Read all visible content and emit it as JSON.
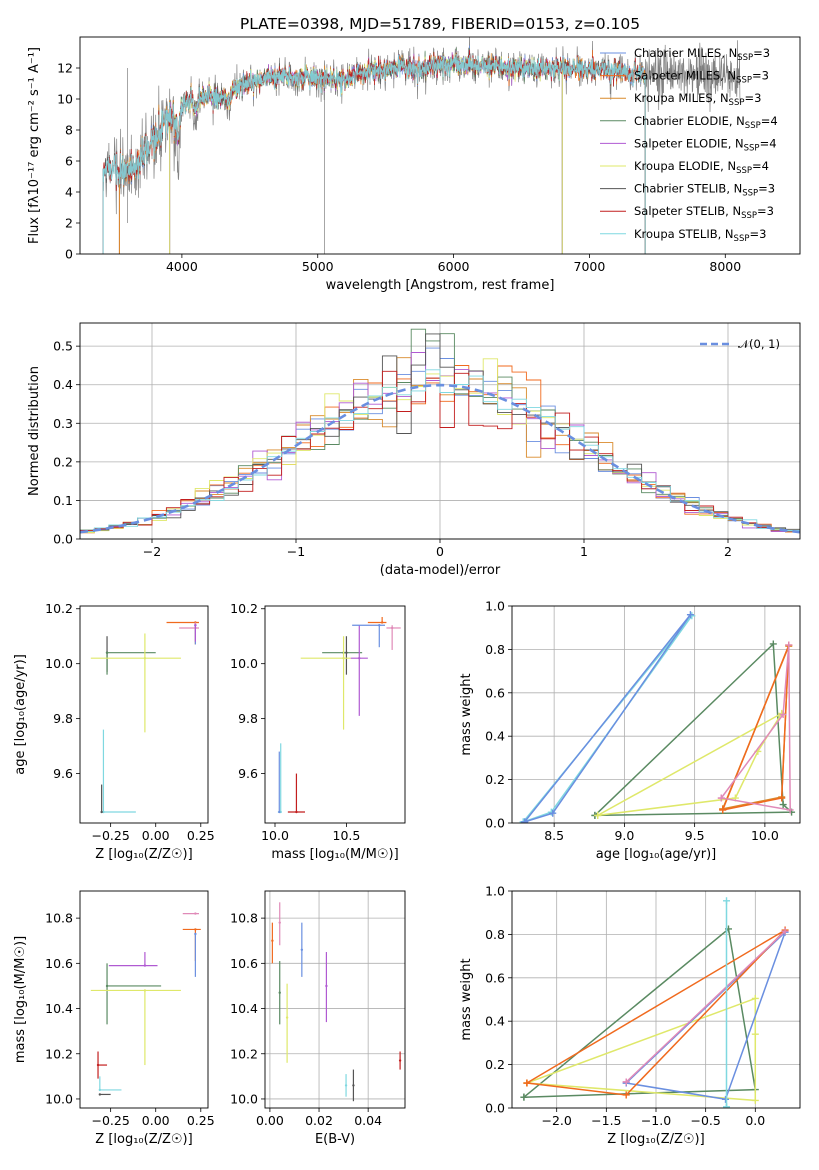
{
  "title": "PLATE=0398, MJD=51789, FIBERID=0153, z=0.105",
  "colors": {
    "chabrier_miles": "#6a8fe0",
    "salpeter_miles": "#f06a1e",
    "kroupa_miles": "#d98a2b",
    "chabrier_elodie": "#5a8a62",
    "salpeter_elodie": "#b05ad2",
    "kroupa_elodie": "#dfe86a",
    "chabrier_stelib": "#555555",
    "salpeter_stelib": "#c21e1e",
    "kroupa_stelib": "#7fd8e0",
    "pink": "#e08ab8",
    "data": "#808080",
    "normal": "#6a8fe0"
  },
  "chart_data": [
    {
      "id": "spectrum",
      "type": "line",
      "xlabel": "wavelength [Angstrom, rest frame]",
      "ylabel": "Flux [fλ10⁻¹⁷ erg cm⁻² s⁻¹ A⁻¹]",
      "xlim": [
        3250,
        8550
      ],
      "ylim": [
        0,
        14
      ],
      "xticks": [
        4000,
        5000,
        6000,
        7000,
        8000
      ],
      "yticks": [
        0,
        2,
        4,
        6,
        8,
        10,
        12
      ],
      "legend_position": "top-right",
      "legend": [
        {
          "label": "Chabrier MILES, N",
          "sub": "SSP",
          "suffix": "=3",
          "color": "#6a8fe0"
        },
        {
          "label": "Salpeter MILES, N",
          "sub": "SSP",
          "suffix": "=3",
          "color": "#f06a1e"
        },
        {
          "label": "Kroupa MILES, N",
          "sub": "SSP",
          "suffix": "=3",
          "color": "#d98a2b"
        },
        {
          "label": "Chabrier ELODIE, N",
          "sub": "SSP",
          "suffix": "=4",
          "color": "#5a8a62"
        },
        {
          "label": "Salpeter ELODIE, N",
          "sub": "SSP",
          "suffix": "=4",
          "color": "#b05ad2"
        },
        {
          "label": "Kroupa ELODIE, N",
          "sub": "SSP",
          "suffix": "=4",
          "color": "#dfe86a"
        },
        {
          "label": "Chabrier STELIB, N",
          "sub": "SSP",
          "suffix": "=3",
          "color": "#555555"
        },
        {
          "label": "Salpeter STELIB, N",
          "sub": "SSP",
          "suffix": "=3",
          "color": "#c21e1e"
        },
        {
          "label": "Kroupa STELIB, N",
          "sub": "SSP",
          "suffix": "=3",
          "color": "#7fd8e0"
        }
      ],
      "data_range": [
        3420,
        8110
      ],
      "model_ranges": {
        "miles": [
          3540,
          7410
        ],
        "elodie": [
          3910,
          6800
        ],
        "stelib": [
          3420,
          7410
        ]
      },
      "envelope": [
        [
          3420,
          5.5
        ],
        [
          3600,
          5.3
        ],
        [
          3700,
          6.2
        ],
        [
          3800,
          7.5
        ],
        [
          3900,
          8.8
        ],
        [
          4000,
          9.6
        ],
        [
          4100,
          10.2
        ],
        [
          4200,
          10.2
        ],
        [
          4300,
          10.1
        ],
        [
          4400,
          10.6
        ],
        [
          4500,
          11.0
        ],
        [
          4600,
          11.3
        ],
        [
          4700,
          11.4
        ],
        [
          4800,
          11.5
        ],
        [
          4900,
          11.5
        ],
        [
          5000,
          11.4
        ],
        [
          5100,
          11.3
        ],
        [
          5200,
          11.2
        ],
        [
          5300,
          11.6
        ],
        [
          5400,
          11.8
        ],
        [
          5500,
          11.9
        ],
        [
          5600,
          12.0
        ],
        [
          5700,
          12.0
        ],
        [
          5800,
          12.1
        ],
        [
          5900,
          12.2
        ],
        [
          6000,
          12.2
        ],
        [
          6100,
          12.2
        ],
        [
          6200,
          12.1
        ],
        [
          6300,
          12.1
        ],
        [
          6400,
          12.0
        ],
        [
          6500,
          12.0
        ],
        [
          6600,
          12.0
        ],
        [
          6700,
          12.0
        ],
        [
          6800,
          12.0
        ],
        [
          6900,
          12.0
        ],
        [
          7000,
          11.9
        ],
        [
          7100,
          11.9
        ],
        [
          7200,
          11.8
        ],
        [
          7300,
          11.7
        ],
        [
          7410,
          11.6
        ],
        [
          7600,
          11.6
        ],
        [
          7800,
          11.5
        ],
        [
          8000,
          11.5
        ],
        [
          8110,
          11.4
        ]
      ]
    },
    {
      "id": "residuals",
      "type": "step",
      "xlabel": "(data-model)/error",
      "ylabel": "Normed distribution",
      "xlim": [
        -2.5,
        2.5
      ],
      "ylim": [
        0,
        0.56
      ],
      "xticks": [
        -2,
        -1,
        0,
        1,
        2
      ],
      "yticks": [
        0.0,
        0.1,
        0.2,
        0.3,
        0.4,
        0.5
      ],
      "grid": true,
      "legend_position": "top-right",
      "legend": [
        {
          "label": "𝒩(0, 1)",
          "color": "#6a8fe0",
          "style": "dashed"
        }
      ],
      "bin_width": 0.1
    },
    {
      "id": "age_vs_Z",
      "type": "errorbar",
      "xlabel": "Z [log₁₀(Z/Z☉)]",
      "ylabel": "age  [log₁₀(age/yr)]",
      "xlim": [
        -0.42,
        0.29
      ],
      "ylim": [
        9.42,
        10.21
      ],
      "xticks": [
        -0.25,
        0.0,
        0.25
      ],
      "yticks": [
        9.6,
        9.8,
        10.0,
        10.2
      ],
      "points": [
        {
          "color": "#555555",
          "x": -0.27,
          "xerr": [
            0.0,
            0.0
          ],
          "y": 10.04,
          "yerr": [
            0.07,
            0.06
          ]
        },
        {
          "color": "#5a8a62",
          "x": -0.27,
          "xerr": [
            0.0,
            0.27
          ],
          "y": 10.04,
          "yerr": [
            0.08,
            0.0
          ]
        },
        {
          "color": "#dfe86a",
          "x": -0.06,
          "xerr": [
            0.3,
            0.2
          ],
          "y": 10.02,
          "yerr": [
            0.27,
            0.09
          ]
        },
        {
          "color": "#f06a1e",
          "x": 0.22,
          "xerr": [
            0.16,
            0.02
          ],
          "y": 10.15,
          "yerr": [
            0.08,
            0.0
          ]
        },
        {
          "color": "#6a8fe0",
          "x": 0.22,
          "xerr": [
            0.0,
            0.0
          ],
          "y": 10.14,
          "yerr": [
            0.07,
            0.01
          ]
        },
        {
          "color": "#e08ab8",
          "x": 0.22,
          "xerr": [
            0.09,
            0.02
          ],
          "y": 10.13,
          "yerr": [
            0.0,
            0.02
          ]
        },
        {
          "color": "#b05ad2",
          "x": 0.22,
          "xerr": [
            0.0,
            0.0
          ],
          "y": 10.14,
          "yerr": [
            0.06,
            0.0
          ]
        },
        {
          "color": "#7fd8e0",
          "x": -0.29,
          "xerr": [
            0.0,
            0.18
          ],
          "y": 9.46,
          "yerr": [
            0.0,
            0.3
          ]
        },
        {
          "color": "#555555",
          "x": -0.3,
          "xerr": [
            0.0,
            0.0
          ],
          "y": 9.46,
          "yerr": [
            0.0,
            0.1
          ]
        }
      ]
    },
    {
      "id": "age_vs_mass",
      "type": "errorbar",
      "xlabel": "mass [log₁₀(M/M☉)]",
      "ylabel": "",
      "xlim": [
        9.93,
        10.91
      ],
      "ylim": [
        9.42,
        10.21
      ],
      "xticks": [
        10.0,
        10.5
      ],
      "yticks": [
        9.6,
        9.8,
        10.0,
        10.2
      ],
      "points": [
        {
          "color": "#5a8a62",
          "x": 10.48,
          "xerr": [
            0.15,
            0.13
          ],
          "y": 10.04,
          "yerr": [
            0.0,
            0.0
          ]
        },
        {
          "color": "#555555",
          "x": 10.5,
          "xerr": [
            0.0,
            0.0
          ],
          "y": 10.04,
          "yerr": [
            0.08,
            0.06
          ]
        },
        {
          "color": "#dfe86a",
          "x": 10.48,
          "xerr": [
            0.3,
            0.05
          ],
          "y": 10.02,
          "yerr": [
            0.26,
            0.08
          ]
        },
        {
          "color": "#b05ad2",
          "x": 10.59,
          "xerr": [
            0.06,
            0.06
          ],
          "y": 10.02,
          "yerr": [
            0.21,
            0.12
          ]
        },
        {
          "color": "#6a8fe0",
          "x": 10.73,
          "xerr": [
            0.19,
            0.04
          ],
          "y": 10.14,
          "yerr": [
            0.08,
            0.0
          ]
        },
        {
          "color": "#f06a1e",
          "x": 10.75,
          "xerr": [
            0.1,
            0.03
          ],
          "y": 10.15,
          "yerr": [
            0.0,
            0.02
          ]
        },
        {
          "color": "#e08ab8",
          "x": 10.82,
          "xerr": [
            0.04,
            0.06
          ],
          "y": 10.13,
          "yerr": [
            0.08,
            0.01
          ]
        },
        {
          "color": "#7fd8e0",
          "x": 10.04,
          "xerr": [
            0.02,
            0.0
          ],
          "y": 9.46,
          "yerr": [
            0.0,
            0.25
          ]
        },
        {
          "color": "#6a8fe0",
          "x": 10.03,
          "xerr": [
            0.0,
            0.0
          ],
          "y": 9.46,
          "yerr": [
            0.0,
            0.22
          ]
        },
        {
          "color": "#c21e1e",
          "x": 10.15,
          "xerr": [
            0.06,
            0.06
          ],
          "y": 9.46,
          "yerr": [
            0.0,
            0.14
          ]
        }
      ]
    },
    {
      "id": "weight_vs_age",
      "type": "line",
      "xlabel": "age  [log₁₀(age/yr)]",
      "ylabel": "mass weight",
      "xlim": [
        8.2,
        10.25
      ],
      "ylim": [
        0,
        1.0
      ],
      "xticks": [
        8.5,
        9.0,
        9.5,
        10.0
      ],
      "yticks": [
        0.0,
        0.2,
        0.4,
        0.6,
        0.8,
        1.0
      ],
      "grid": true,
      "series": [
        {
          "color": "#7fd8e0",
          "x": [
            8.28,
            8.48,
            9.48,
            8.28
          ],
          "y": [
            0.005,
            0.05,
            0.955,
            0.005
          ]
        },
        {
          "color": "#6a8fe0",
          "x": [
            8.29,
            8.49,
            9.47,
            8.29
          ],
          "y": [
            0.005,
            0.045,
            0.96,
            0.005
          ]
        },
        {
          "color": "#5a8a62",
          "x": [
            8.79,
            10.06,
            10.13,
            10.19,
            8.79
          ],
          "y": [
            0.035,
            0.825,
            0.085,
            0.05,
            0.035
          ]
        },
        {
          "color": "#dfe86a",
          "x": [
            8.81,
            9.79,
            9.95,
            10.12,
            8.81
          ],
          "y": [
            0.035,
            0.115,
            0.33,
            0.505,
            0.035
          ]
        },
        {
          "color": "#d98a2b",
          "x": [
            9.7,
            10.12,
            10.17,
            9.7
          ],
          "y": [
            0.065,
            0.12,
            0.815,
            0.065
          ]
        },
        {
          "color": "#f06a1e",
          "x": [
            9.7,
            10.12,
            10.17,
            9.7
          ],
          "y": [
            0.06,
            0.115,
            0.82,
            0.06
          ]
        },
        {
          "color": "#e08ab8",
          "x": [
            9.69,
            10.13,
            10.17,
            10.18,
            9.69
          ],
          "y": [
            0.115,
            0.5,
            0.82,
            0.06,
            0.115
          ]
        }
      ]
    },
    {
      "id": "mass_vs_Z",
      "type": "errorbar",
      "xlabel": "Z [log₁₀(Z/Z☉)]",
      "ylabel": "mass [log₁₀(M/M☉)]",
      "xlim": [
        -0.42,
        0.29
      ],
      "ylim": [
        9.96,
        10.92
      ],
      "xticks": [
        -0.25,
        0.0,
        0.25
      ],
      "yticks": [
        10.0,
        10.2,
        10.4,
        10.6,
        10.8
      ],
      "points": [
        {
          "color": "#e08ab8",
          "x": 0.22,
          "xerr": [
            0.07,
            0.02
          ],
          "y": 10.82,
          "yerr": [
            0.0,
            0.0
          ]
        },
        {
          "color": "#f06a1e",
          "x": 0.22,
          "xerr": [
            0.07,
            0.03
          ],
          "y": 10.75,
          "yerr": [
            0.14,
            0.0
          ]
        },
        {
          "color": "#6a8fe0",
          "x": 0.22,
          "xerr": [
            0.0,
            0.0
          ],
          "y": 10.73,
          "yerr": [
            0.19,
            0.0
          ]
        },
        {
          "color": "#b05ad2",
          "x": -0.06,
          "xerr": [
            0.2,
            0.07
          ],
          "y": 10.59,
          "yerr": [
            0.0,
            0.06
          ]
        },
        {
          "color": "#5a8a62",
          "x": -0.27,
          "xerr": [
            0.0,
            0.3
          ],
          "y": 10.5,
          "yerr": [
            0.17,
            0.1
          ]
        },
        {
          "color": "#dfe86a",
          "x": -0.06,
          "xerr": [
            0.3,
            0.2
          ],
          "y": 10.48,
          "yerr": [
            0.33,
            0.0
          ]
        },
        {
          "color": "#c21e1e",
          "x": -0.32,
          "xerr": [
            0.0,
            0.05
          ],
          "y": 10.15,
          "yerr": [
            0.06,
            0.06
          ]
        },
        {
          "color": "#7fd8e0",
          "x": -0.31,
          "xerr": [
            0.0,
            0.12
          ],
          "y": 10.04,
          "yerr": [
            0.0,
            0.06
          ]
        },
        {
          "color": "#555555",
          "x": -0.31,
          "xerr": [
            0.0,
            0.06
          ],
          "y": 10.02,
          "yerr": [
            0.0,
            0.0
          ]
        }
      ]
    },
    {
      "id": "mass_vs_ebv",
      "type": "errorbar",
      "xlabel": "E(B-V)",
      "ylabel": "",
      "xlim": [
        -0.002,
        0.055
      ],
      "ylim": [
        9.96,
        10.92
      ],
      "xticks": [
        0.0,
        0.02,
        0.04
      ],
      "yticks": [
        10.0,
        10.2,
        10.4,
        10.6,
        10.8
      ],
      "grid": true,
      "points": [
        {
          "color": "#e08ab8",
          "x": 0.004,
          "y": 10.78,
          "yerr": [
            0.1,
            0.09
          ]
        },
        {
          "color": "#f06a1e",
          "x": 0.001,
          "y": 10.7,
          "yerr": [
            0.1,
            0.08
          ]
        },
        {
          "color": "#5a8a62",
          "x": 0.004,
          "y": 10.47,
          "yerr": [
            0.14,
            0.14
          ]
        },
        {
          "color": "#dfe86a",
          "x": 0.007,
          "y": 10.36,
          "yerr": [
            0.2,
            0.15
          ]
        },
        {
          "color": "#6a8fe0",
          "x": 0.013,
          "y": 10.66,
          "yerr": [
            0.12,
            0.12
          ]
        },
        {
          "color": "#b05ad2",
          "x": 0.023,
          "y": 10.5,
          "yerr": [
            0.16,
            0.15
          ]
        },
        {
          "color": "#7fd8e0",
          "x": 0.031,
          "y": 10.06,
          "yerr": [
            0.05,
            0.05
          ]
        },
        {
          "color": "#555555",
          "x": 0.034,
          "y": 10.06,
          "yerr": [
            0.07,
            0.07
          ]
        },
        {
          "color": "#c21e1e",
          "x": 0.053,
          "y": 10.17,
          "yerr": [
            0.04,
            0.04
          ]
        }
      ]
    },
    {
      "id": "weight_vs_Z",
      "type": "line",
      "xlabel": "Z [log₁₀(Z/Z☉)]",
      "ylabel": "mass weight",
      "xlim": [
        -2.45,
        0.45
      ],
      "ylim": [
        0,
        1.0
      ],
      "xticks": [
        -2.0,
        -1.5,
        -1.0,
        -0.5,
        0.0
      ],
      "yticks": [
        0.0,
        0.2,
        0.4,
        0.6,
        0.8,
        1.0
      ],
      "grid": true,
      "series": [
        {
          "color": "#5a8a62",
          "x": [
            -2.33,
            -0.27,
            0.0,
            -2.33
          ],
          "y": [
            0.05,
            0.825,
            0.085,
            0.05
          ]
        },
        {
          "color": "#dfe86a",
          "x": [
            -2.3,
            0.0,
            0.0,
            0.0,
            -2.3
          ],
          "y": [
            0.115,
            0.035,
            0.34,
            0.505,
            0.115
          ]
        },
        {
          "color": "#6a8fe0",
          "x": [
            -1.3,
            0.3,
            -0.3,
            -1.3
          ],
          "y": [
            0.115,
            0.81,
            0.04,
            0.115
          ]
        },
        {
          "color": "#f06a1e",
          "x": [
            -2.3,
            -1.3,
            0.3,
            -2.3
          ],
          "y": [
            0.115,
            0.06,
            0.82,
            0.115
          ]
        },
        {
          "color": "#e08ab8",
          "x": [
            -1.3,
            0.3,
            -1.3
          ],
          "y": [
            0.12,
            0.815,
            0.12
          ]
        },
        {
          "color": "#7fd8e0",
          "x": [
            -0.29,
            -0.29,
            -0.29
          ],
          "y": [
            0.005,
            0.955,
            0.005
          ]
        }
      ]
    }
  ]
}
